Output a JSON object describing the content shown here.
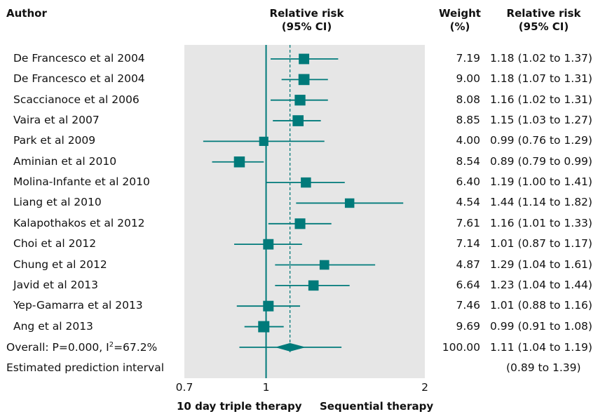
{
  "headers": {
    "author": "Author",
    "rr_plot_line1": "Relative risk",
    "rr_plot_line2": "(95% CI)",
    "weight_line1": "Weight",
    "weight_line2": "(%)",
    "rr_col_line1": "Relative risk",
    "rr_col_line2": "(95% CI)"
  },
  "colors": {
    "marker": "#007a7a",
    "panel": "#e6e6e6"
  },
  "chart_data": {
    "type": "forest",
    "xlim": [
      0.7,
      2
    ],
    "x_scale": "log",
    "ticks": [
      {
        "value": 0.7,
        "label": "0.7"
      },
      {
        "value": 1,
        "label": "1"
      },
      {
        "value": 2,
        "label": "2"
      }
    ],
    "null_line": 1,
    "overall_line": 1.11,
    "favours_left": "10 day triple therapy",
    "favours_right": "Sequential therapy",
    "studies": [
      {
        "author": "De Francesco et al 2004",
        "rr": 1.18,
        "lo": 1.02,
        "hi": 1.37,
        "weight": "7.19",
        "ci_text": "1.18 (1.02 to 1.37)"
      },
      {
        "author": "De Francesco et al 2004",
        "rr": 1.18,
        "lo": 1.07,
        "hi": 1.31,
        "weight": "9.00",
        "ci_text": "1.18 (1.07 to 1.31)"
      },
      {
        "author": "Scaccianoce et al 2006",
        "rr": 1.16,
        "lo": 1.02,
        "hi": 1.31,
        "weight": "8.08",
        "ci_text": "1.16 (1.02 to 1.31)"
      },
      {
        "author": "Vaira et al 2007",
        "rr": 1.15,
        "lo": 1.03,
        "hi": 1.27,
        "weight": "8.85",
        "ci_text": "1.15 (1.03 to 1.27)"
      },
      {
        "author": "Park et al 2009",
        "rr": 0.99,
        "lo": 0.76,
        "hi": 1.29,
        "weight": "4.00",
        "ci_text": "0.99 (0.76 to 1.29)"
      },
      {
        "author": "Aminian et al 2010",
        "rr": 0.89,
        "lo": 0.79,
        "hi": 0.99,
        "weight": "8.54",
        "ci_text": "0.89 (0.79 to 0.99)"
      },
      {
        "author": "Molina-Infante et al 2010",
        "rr": 1.19,
        "lo": 1.0,
        "hi": 1.41,
        "weight": "6.40",
        "ci_text": "1.19 (1.00 to 1.41)"
      },
      {
        "author": "Liang et al 2010",
        "rr": 1.44,
        "lo": 1.14,
        "hi": 1.82,
        "weight": "4.54",
        "ci_text": "1.44 (1.14 to 1.82)"
      },
      {
        "author": "Kalapothakos et al 2012",
        "rr": 1.16,
        "lo": 1.01,
        "hi": 1.33,
        "weight": "7.61",
        "ci_text": "1.16 (1.01 to 1.33)"
      },
      {
        "author": "Choi et al 2012",
        "rr": 1.01,
        "lo": 0.87,
        "hi": 1.17,
        "weight": "7.14",
        "ci_text": "1.01 (0.87 to 1.17)"
      },
      {
        "author": "Chung et al 2012",
        "rr": 1.29,
        "lo": 1.04,
        "hi": 1.61,
        "weight": "4.87",
        "ci_text": "1.29 (1.04 to 1.61)"
      },
      {
        "author": "Javid et al 2013",
        "rr": 1.23,
        "lo": 1.04,
        "hi": 1.44,
        "weight": "6.64",
        "ci_text": "1.23 (1.04 to 1.44)"
      },
      {
        "author": "Yep-Gamarra et al 2013",
        "rr": 1.01,
        "lo": 0.88,
        "hi": 1.16,
        "weight": "7.46",
        "ci_text": "1.01 (0.88 to 1.16)"
      },
      {
        "author": "Ang et al 2013",
        "rr": 0.99,
        "lo": 0.91,
        "hi": 1.08,
        "weight": "9.69",
        "ci_text": "0.99 (0.91 to 1.08)"
      }
    ],
    "overall": {
      "label_prefix": "Overall: P=0.000, I",
      "label_sup": "2",
      "label_suffix": "=67.2%",
      "rr": 1.11,
      "lo": 1.04,
      "hi": 1.19,
      "pi_lo": 0.89,
      "pi_hi": 1.39,
      "weight": "100.00",
      "ci_text": "1.11 (1.04 to 1.19)"
    },
    "prediction": {
      "label": "Estimated prediction interval",
      "ci_text": "(0.89 to 1.39)"
    }
  }
}
